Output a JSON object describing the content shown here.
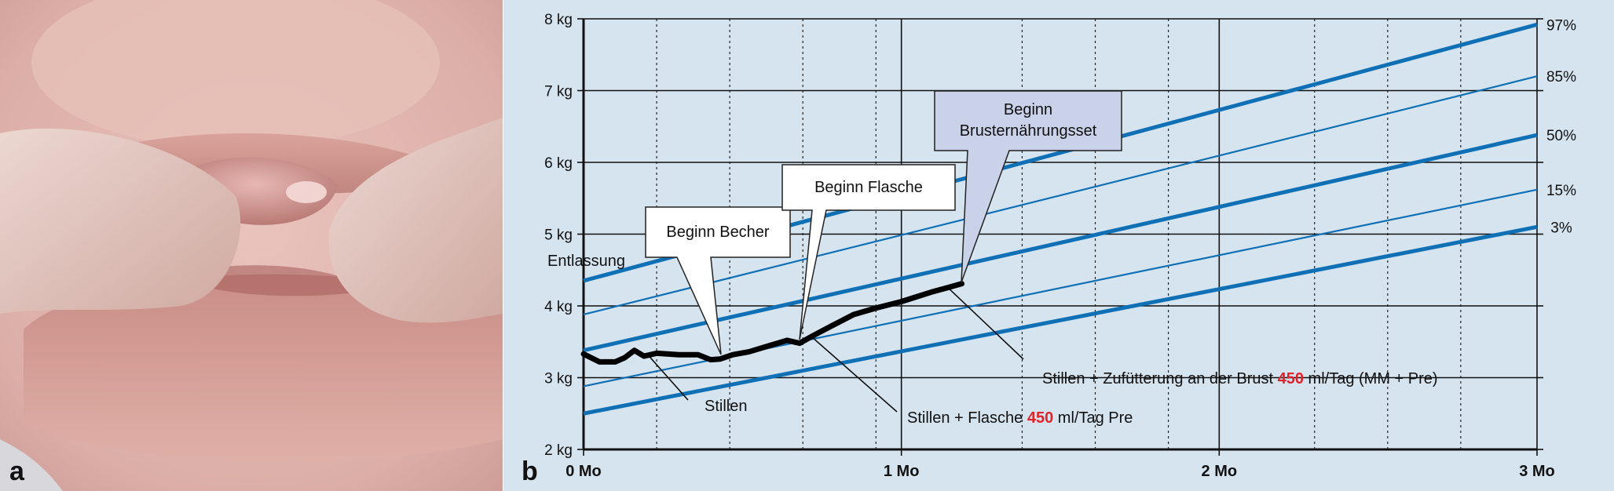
{
  "panel_a": {
    "letter": "a"
  },
  "panel_b": {
    "letter": "b"
  },
  "colors": {
    "chart_background": "#d6e4ef",
    "percentile_line": "#1070b5",
    "weight_line": "#000000",
    "callout_fill": "#ffffff",
    "callout_fill_highlight": "#c9d2e8",
    "emphasis": "#e0232a"
  },
  "chart_data": {
    "type": "line",
    "xlim": [
      0,
      3
    ],
    "ylim": [
      2,
      8
    ],
    "x_ticks": [
      {
        "value": 0,
        "label": "0 Mo"
      },
      {
        "value": 1,
        "label": "1 Mo"
      },
      {
        "value": 2,
        "label": "2 Mo"
      },
      {
        "value": 3,
        "label": "3 Mo"
      }
    ],
    "y_ticks": [
      {
        "value": 2,
        "label": "2 kg"
      },
      {
        "value": 3,
        "label": "3 kg"
      },
      {
        "value": 4,
        "label": "4 kg"
      },
      {
        "value": 5,
        "label": "5 kg"
      },
      {
        "value": 6,
        "label": "6 kg"
      },
      {
        "value": 7,
        "label": "7 kg"
      },
      {
        "value": 8,
        "label": "8 kg"
      }
    ],
    "minor_x_gridlines": [
      0.23,
      0.46,
      0.69,
      0.92,
      1.38,
      1.61,
      1.84,
      2.3,
      2.53,
      2.76
    ],
    "grid": true,
    "percentiles": [
      {
        "name": "97%",
        "x": [
          0,
          3
        ],
        "y": [
          4.35,
          7.92
        ],
        "bold": true
      },
      {
        "name": "85%",
        "x": [
          0,
          3
        ],
        "y": [
          3.88,
          7.2
        ],
        "bold": false
      },
      {
        "name": "50%",
        "x": [
          0,
          3
        ],
        "y": [
          3.38,
          6.38
        ],
        "bold": true
      },
      {
        "name": "15%",
        "x": [
          0,
          3
        ],
        "y": [
          2.88,
          5.62
        ],
        "bold": false
      },
      {
        "name": "3%",
        "x": [
          0,
          3
        ],
        "y": [
          2.5,
          5.1
        ],
        "bold": true
      }
    ],
    "weight_curve": {
      "x": [
        0,
        0.05,
        0.1,
        0.13,
        0.16,
        0.19,
        0.23,
        0.3,
        0.36,
        0.4,
        0.43,
        0.47,
        0.52,
        0.58,
        0.64,
        0.68,
        0.72,
        0.78,
        0.85,
        0.92,
        1.0,
        1.05,
        1.1,
        1.15,
        1.19
      ],
      "y": [
        3.33,
        3.22,
        3.22,
        3.28,
        3.38,
        3.3,
        3.34,
        3.32,
        3.32,
        3.25,
        3.26,
        3.32,
        3.36,
        3.44,
        3.52,
        3.48,
        3.58,
        3.72,
        3.88,
        3.97,
        4.06,
        4.13,
        4.2,
        4.26,
        4.31
      ]
    },
    "annotations": {
      "entlassung": "Entlassung",
      "stillen": "Stillen",
      "flasche_prefix": "Stillen + Flasche ",
      "flasche_amount": "450",
      "flasche_suffix": " ml/Tag Pre",
      "zufuetterung_prefix": "Stillen + Zufütterung an der Brust ",
      "zufuetterung_amount": "450",
      "zufuetterung_suffix": " ml/Tag (MM + Pre)"
    },
    "callouts": {
      "becher": "Beginn Becher",
      "flasche": "Beginn Flasche",
      "brusternaehrungsset_line1": "Beginn",
      "brusternaehrungsset_line2": "Brusternährungsset"
    }
  }
}
